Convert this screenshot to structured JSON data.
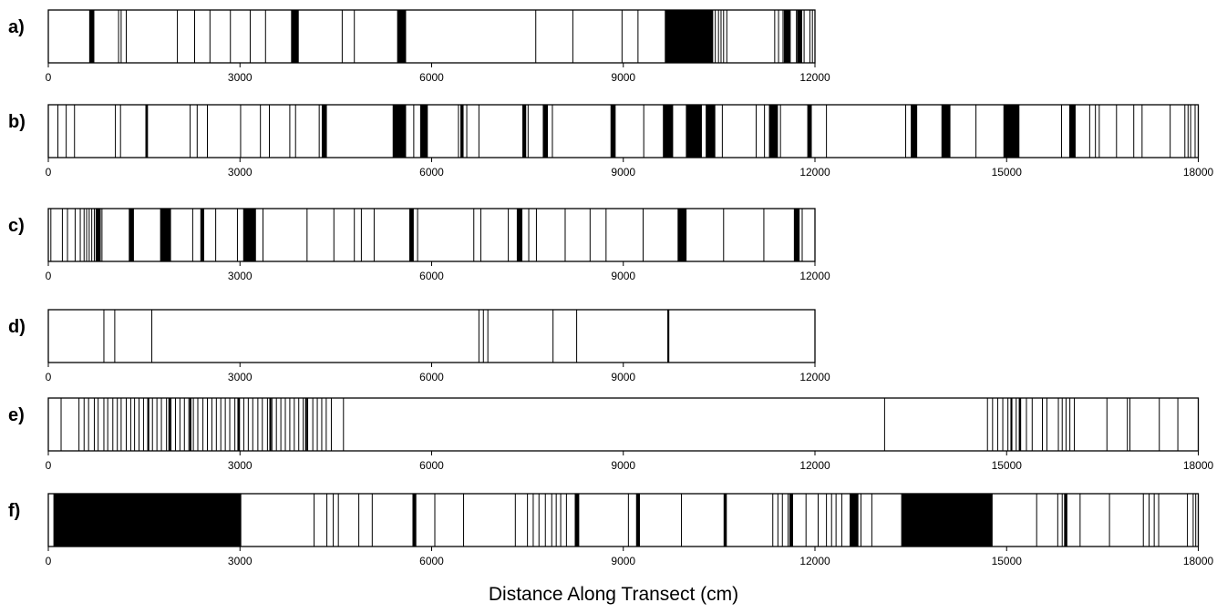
{
  "chart_data": {
    "type": "bar",
    "xlabel": "Distance Along Transect (cm)",
    "panels": [
      {
        "label": "a)",
        "xlim": [
          0,
          12000
        ],
        "ticks": [
          0,
          3000,
          6000,
          9000,
          12000
        ],
        "tick_labels": [
          "0",
          "3000",
          "6000",
          "9000",
          "12000"
        ],
        "lines": [
          690,
          710,
          1100,
          1140,
          1220,
          2020,
          2290,
          2530,
          2850,
          3160,
          3400,
          4600,
          4790,
          5550,
          7630,
          8210,
          8980,
          9230,
          10400,
          10440,
          10490,
          10530,
          10570,
          10620,
          11370,
          11430,
          11500,
          11520,
          11590,
          11710,
          11830,
          11920,
          11960
        ],
        "segments": [
          [
            640,
            720
          ],
          [
            3800,
            3920
          ],
          [
            5460,
            5600
          ],
          [
            9650,
            10400
          ],
          [
            11520,
            11620
          ],
          [
            11720,
            11800
          ]
        ]
      },
      {
        "label": "b)",
        "xlim": [
          0,
          18000
        ],
        "ticks": [
          0,
          3000,
          6000,
          9000,
          12000,
          15000,
          18000
        ],
        "tick_labels": [
          "0",
          "3000",
          "6000",
          "9000",
          "12000",
          "15000",
          "18000"
        ],
        "lines": [
          150,
          280,
          410,
          1050,
          1130,
          1530,
          2220,
          2330,
          2490,
          3010,
          3320,
          3460,
          3780,
          3870,
          4240,
          5720,
          6420,
          6550,
          6740,
          7510,
          7890,
          9320,
          10550,
          11080,
          11210,
          11460,
          12180,
          13420,
          14520,
          15860,
          16300,
          16390,
          16450,
          16720,
          16990,
          17120,
          17560,
          17790,
          17840,
          17880,
          17950
        ],
        "segments": [
          [
            1520,
            1560
          ],
          [
            4280,
            4360
          ],
          [
            5390,
            5600
          ],
          [
            5820,
            5940
          ],
          [
            6450,
            6500
          ],
          [
            7420,
            7480
          ],
          [
            7740,
            7820
          ],
          [
            8800,
            8880
          ],
          [
            9620,
            9780
          ],
          [
            9980,
            10230
          ],
          [
            10290,
            10440
          ],
          [
            11280,
            11420
          ],
          [
            11880,
            11950
          ],
          [
            13500,
            13600
          ],
          [
            13980,
            14120
          ],
          [
            14950,
            15200
          ],
          [
            15980,
            16080
          ]
        ]
      },
      {
        "label": "c)",
        "xlim": [
          0,
          12000
        ],
        "ticks": [
          0,
          3000,
          6000,
          9000,
          12000
        ],
        "tick_labels": [
          "0",
          "3000",
          "6000",
          "9000",
          "12000"
        ],
        "lines": [
          40,
          220,
          300,
          420,
          500,
          560,
          600,
          640,
          680,
          720,
          760,
          800,
          840,
          1300,
          2260,
          2620,
          2960,
          3360,
          4050,
          4470,
          4790,
          4900,
          5100,
          5780,
          6660,
          6770,
          7200,
          7340,
          7520,
          7640,
          8090,
          8480,
          8730,
          9310,
          10570,
          11200,
          11800
        ],
        "segments": [
          [
            740,
            820
          ],
          [
            1260,
            1340
          ],
          [
            1750,
            1920
          ],
          [
            2380,
            2440
          ],
          [
            3050,
            3250
          ],
          [
            5650,
            5720
          ],
          [
            7340,
            7420
          ],
          [
            9850,
            9990
          ],
          [
            11670,
            11760
          ]
        ]
      },
      {
        "label": "d)",
        "xlim": [
          0,
          12000
        ],
        "ticks": [
          0,
          3000,
          6000,
          9000,
          12000
        ],
        "tick_labels": [
          "0",
          "3000",
          "6000",
          "9000",
          "12000"
        ],
        "lines": [
          870,
          1040,
          1620,
          6740,
          6810,
          6880,
          7900,
          8270,
          9700
        ],
        "segments": [
          [
            9690,
            9720
          ]
        ]
      },
      {
        "label": "e)",
        "xlim": [
          0,
          18000
        ],
        "ticks": [
          0,
          3000,
          6000,
          9000,
          12000,
          15000,
          18000
        ],
        "tick_labels": [
          "0",
          "3000",
          "6000",
          "9000",
          "12000",
          "15000",
          "18000"
        ],
        "lines": [
          200,
          480,
          560,
          630,
          720,
          780,
          870,
          930,
          1010,
          1080,
          1140,
          1220,
          1290,
          1350,
          1420,
          1490,
          1560,
          1630,
          1700,
          1770,
          1850,
          1920,
          1990,
          2060,
          2130,
          2200,
          2270,
          2340,
          2420,
          2490,
          2560,
          2630,
          2700,
          2770,
          2840,
          2920,
          2990,
          3060,
          3130,
          3200,
          3280,
          3350,
          3430,
          3500,
          3570,
          3640,
          3710,
          3780,
          3850,
          3920,
          3990,
          4060,
          4140,
          4210,
          4280,
          4350,
          4430,
          4620,
          13090,
          14700,
          14780,
          14860,
          14940,
          15020,
          15080,
          15150,
          15220,
          15310,
          15400,
          15560,
          15630,
          15810,
          15870,
          15930,
          15990,
          16060,
          16570,
          16890,
          16930,
          17390,
          17680
        ],
        "segments": [
          [
            1550,
            1580
          ],
          [
            1880,
            1910
          ],
          [
            2210,
            2240
          ],
          [
            2960,
            3000
          ],
          [
            3460,
            3490
          ],
          [
            4020,
            4050
          ],
          [
            15060,
            15090
          ],
          [
            15190,
            15220
          ]
        ]
      },
      {
        "label": "f)",
        "xlim": [
          0,
          18000
        ],
        "ticks": [
          0,
          3000,
          6000,
          9000,
          12000,
          15000,
          18000
        ],
        "tick_labels": [
          "0",
          "3000",
          "6000",
          "9000",
          "12000",
          "15000",
          "18000"
        ],
        "lines": [
          4160,
          4360,
          4460,
          4540,
          4860,
          5070,
          5730,
          6050,
          6500,
          7310,
          7500,
          7590,
          7680,
          7780,
          7880,
          7950,
          8020,
          8110,
          8260,
          9080,
          9910,
          10600,
          11340,
          11420,
          11490,
          11580,
          11650,
          11860,
          12050,
          12180,
          12260,
          12330,
          12420,
          12550,
          12720,
          12890,
          15470,
          15800,
          15870,
          16150,
          16610,
          17140,
          17230,
          17310,
          17380,
          17830,
          17920,
          17960
        ],
        "segments": [
          [
            80,
            3020
          ],
          [
            5700,
            5760
          ],
          [
            8240,
            8310
          ],
          [
            9200,
            9260
          ],
          [
            10570,
            10620
          ],
          [
            11600,
            11650
          ],
          [
            12550,
            12680
          ],
          [
            13350,
            14780
          ],
          [
            15900,
            15950
          ]
        ]
      }
    ]
  }
}
